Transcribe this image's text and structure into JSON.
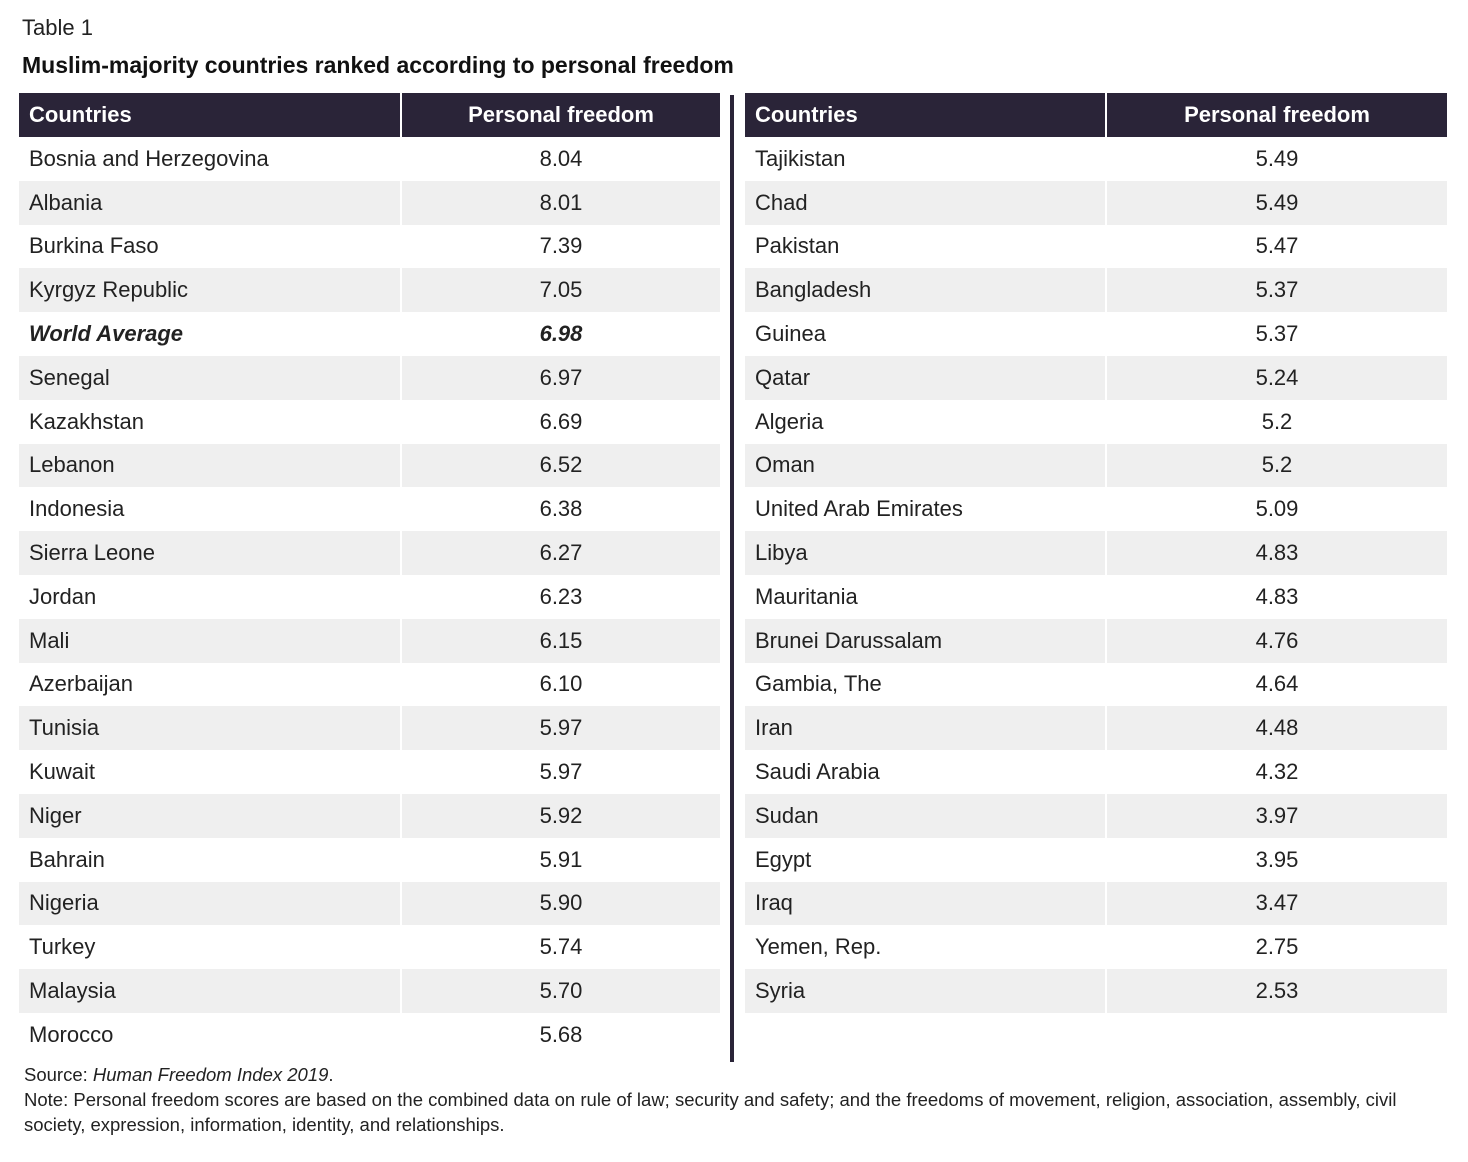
{
  "table_label": "Table 1",
  "title": "Muslim-majority countries ranked according to personal freedom",
  "columns": {
    "country": "Countries",
    "freedom": "Personal freedom"
  },
  "left_rows": [
    {
      "country": "Bosnia and Herzegovina",
      "value": "8.04"
    },
    {
      "country": "Albania",
      "value": "8.01"
    },
    {
      "country": "Burkina Faso",
      "value": "7.39"
    },
    {
      "country": "Kyrgyz Republic",
      "value": "7.05"
    },
    {
      "country": "World Average",
      "value": "6.98",
      "emphasis": true
    },
    {
      "country": "Senegal",
      "value": "6.97"
    },
    {
      "country": "Kazakhstan",
      "value": "6.69"
    },
    {
      "country": "Lebanon",
      "value": "6.52"
    },
    {
      "country": "Indonesia",
      "value": "6.38"
    },
    {
      "country": "Sierra Leone",
      "value": "6.27"
    },
    {
      "country": "Jordan",
      "value": "6.23"
    },
    {
      "country": "Mali",
      "value": "6.15"
    },
    {
      "country": "Azerbaijan",
      "value": "6.10"
    },
    {
      "country": "Tunisia",
      "value": "5.97"
    },
    {
      "country": "Kuwait",
      "value": "5.97"
    },
    {
      "country": "Niger",
      "value": "5.92"
    },
    {
      "country": "Bahrain",
      "value": "5.91"
    },
    {
      "country": "Nigeria",
      "value": "5.90"
    },
    {
      "country": "Turkey",
      "value": "5.74"
    },
    {
      "country": "Malaysia",
      "value": "5.70"
    },
    {
      "country": "Morocco",
      "value": "5.68"
    }
  ],
  "right_rows": [
    {
      "country": "Tajikistan",
      "value": "5.49"
    },
    {
      "country": "Chad",
      "value": "5.49"
    },
    {
      "country": "Pakistan",
      "value": "5.47"
    },
    {
      "country": "Bangladesh",
      "value": "5.37"
    },
    {
      "country": "Guinea",
      "value": "5.37"
    },
    {
      "country": "Qatar",
      "value": "5.24"
    },
    {
      "country": "Algeria",
      "value": "5.2"
    },
    {
      "country": "Oman",
      "value": "5.2"
    },
    {
      "country": "United Arab Emirates",
      "value": "5.09"
    },
    {
      "country": "Libya",
      "value": "4.83"
    },
    {
      "country": "Mauritania",
      "value": "4.83"
    },
    {
      "country": "Brunei Darussalam",
      "value": "4.76"
    },
    {
      "country": "Gambia, The",
      "value": "4.64"
    },
    {
      "country": "Iran",
      "value": "4.48"
    },
    {
      "country": "Saudi Arabia",
      "value": "4.32"
    },
    {
      "country": "Sudan",
      "value": "3.97"
    },
    {
      "country": "Egypt",
      "value": "3.95"
    },
    {
      "country": "Iraq",
      "value": "3.47"
    },
    {
      "country": "Yemen, Rep.",
      "value": "2.75"
    },
    {
      "country": "Syria",
      "value": "2.53"
    }
  ],
  "source": {
    "prefix": "Source: ",
    "title": "Human Freedom Index 2019",
    "suffix": "."
  },
  "note": "Note: Personal freedom scores are based on the combined data on rule of law; security and safety; and the freedoms of movement, religion, association, assembly, civil society, expression, information, identity, and relationships.",
  "colors": {
    "header_bg": "#2a2438",
    "stripe_bg": "#efefef"
  }
}
